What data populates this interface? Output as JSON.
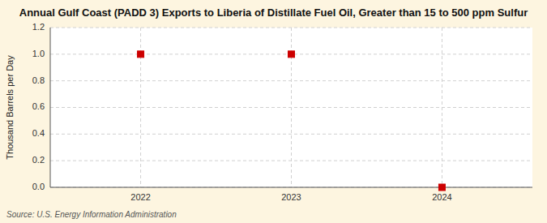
{
  "chart_data": {
    "type": "scatter",
    "title": "Annual Gulf Coast (PADD 3) Exports to Liberia of Distillate Fuel Oil, Greater than 15 to 500 ppm Sulfur",
    "y_label": "Thousand Barrels per Day",
    "source": "Source: U.S. Energy Information Administration",
    "x": [
      2022,
      2023,
      2024
    ],
    "values": [
      1.0,
      1.0,
      0.0
    ],
    "xlim": [
      2021.4,
      2024.6
    ],
    "ylim": [
      0.0,
      1.2
    ],
    "xticks": [
      2022,
      2023,
      2024
    ],
    "yticks": [
      {
        "value": 0.0,
        "label": "0.0"
      },
      0.2,
      0.4,
      0.6,
      0.8,
      {
        "value": 1.0,
        "label": "1.0"
      },
      1.2
    ],
    "color": "#cc0000",
    "marker": "square",
    "grid": true
  }
}
